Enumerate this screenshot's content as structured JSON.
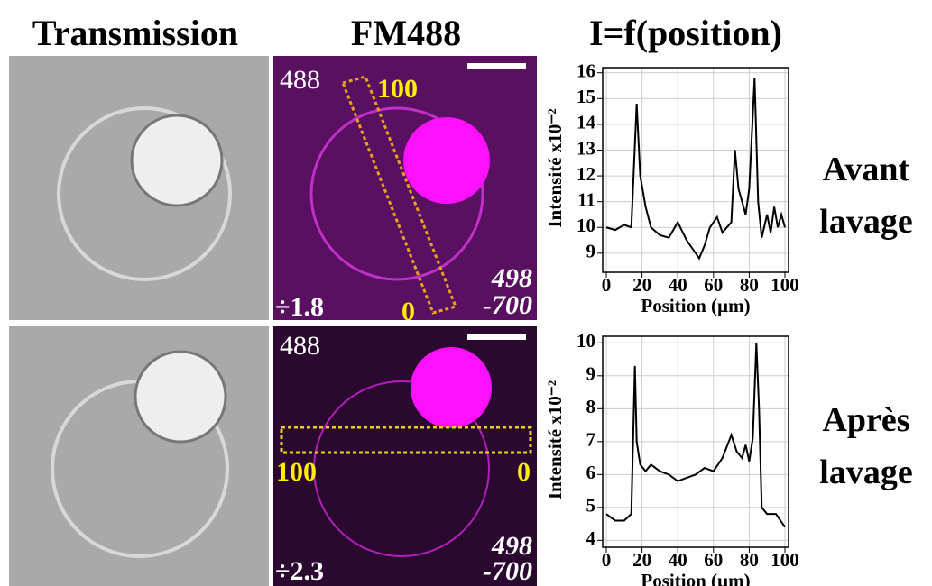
{
  "header": {
    "titles": [
      "Transmission",
      "FM488",
      "I=f(position)"
    ]
  },
  "rows": [
    {
      "label": [
        "Avant",
        "lavage"
      ],
      "channel": "488",
      "roi_start": "100",
      "roi_end": "0",
      "band_top": "498",
      "band_bottom": "-700",
      "scale": "÷1.8"
    },
    {
      "label": [
        "Après",
        "lavage"
      ],
      "channel": "488",
      "roi_start": "100",
      "roi_end": "0",
      "band_top": "498",
      "band_bottom": "-700",
      "scale": "÷2.3"
    }
  ],
  "chart_data": [
    {
      "type": "line",
      "ylabel": "Intensité x10⁻²",
      "xlabel": "Position (µm)",
      "color": "#000000",
      "grid": true,
      "x": [
        0,
        5,
        10,
        14,
        17,
        19,
        22,
        25,
        30,
        35,
        40,
        45,
        50,
        52,
        55,
        58,
        62,
        65,
        70,
        72,
        74,
        76,
        78,
        80,
        83,
        85,
        87,
        90,
        92,
        94,
        96,
        98,
        100
      ],
      "values": [
        10,
        9.9,
        10.1,
        10,
        14.8,
        12,
        10.8,
        10,
        9.7,
        9.6,
        10.2,
        9.5,
        9,
        8.8,
        9.3,
        10,
        10.4,
        9.8,
        10.2,
        13,
        11.5,
        11,
        10.5,
        11.5,
        15.8,
        11,
        9.6,
        10.5,
        9.8,
        10.8,
        10,
        10.5,
        10
      ],
      "xlim": [
        0,
        100
      ],
      "xticks": [
        0,
        20,
        40,
        60,
        80,
        100
      ],
      "ylim": [
        8.4,
        16.2
      ],
      "yticks": [
        9,
        10,
        11,
        12,
        13,
        14,
        15,
        16
      ]
    },
    {
      "type": "line",
      "ylabel": "Intensité x10⁻²",
      "xlabel": "Position (µm)",
      "color": "#000000",
      "grid": true,
      "x": [
        0,
        5,
        10,
        14,
        16,
        17,
        19,
        22,
        25,
        30,
        35,
        40,
        45,
        50,
        55,
        60,
        65,
        70,
        73,
        76,
        78,
        80,
        82,
        84,
        85.5,
        87,
        90,
        95,
        100
      ],
      "values": [
        4.8,
        4.6,
        4.6,
        4.8,
        9.3,
        7,
        6.3,
        6.1,
        6.3,
        6.1,
        6,
        5.8,
        5.9,
        6,
        6.2,
        6.1,
        6.5,
        7.2,
        6.7,
        6.5,
        6.9,
        6.4,
        7.1,
        10,
        8,
        5,
        4.8,
        4.8,
        4.4
      ],
      "xlim": [
        0,
        100
      ],
      "xticks": [
        0,
        20,
        40,
        60,
        80,
        100
      ],
      "ylim": [
        3.9,
        10.2
      ],
      "yticks": [
        4,
        5,
        6,
        7,
        8,
        9,
        10
      ]
    }
  ]
}
